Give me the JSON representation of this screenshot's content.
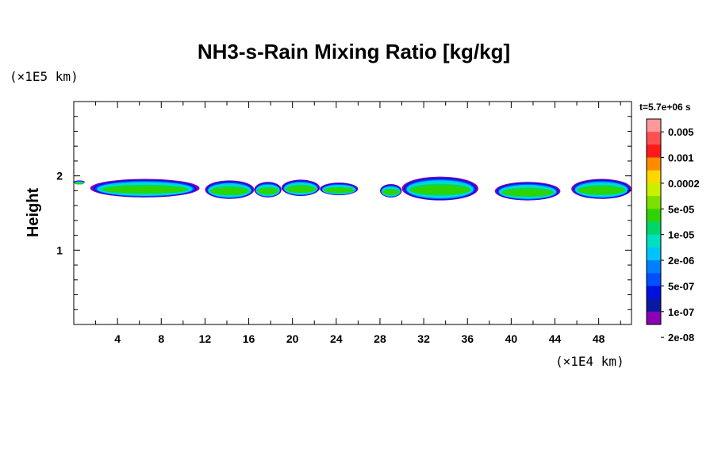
{
  "chart_data": {
    "type": "heatmap",
    "title": "NH3-s-Rain Mixing Ratio [kg/kg]",
    "ylabel": "Height",
    "xlabel": "",
    "x_multiplier": "(×1E4 km)",
    "y_multiplier": "(×1E5 km)",
    "time_label": "t=5.7e+06 s",
    "xlim": [
      0,
      51
    ],
    "ylim": [
      0,
      3
    ],
    "x_ticks": [
      "4",
      "8",
      "12",
      "16",
      "20",
      "24",
      "28",
      "32",
      "36",
      "40",
      "44",
      "48"
    ],
    "y_ticks": [
      "1",
      "2"
    ],
    "colorbar": {
      "labels": [
        "0.005",
        "0.001",
        "0.0002",
        "5e-05",
        "1e-05",
        "2e-06",
        "5e-07",
        "1e-07",
        "2e-08"
      ],
      "colors": [
        "#ff9999",
        "#ff5050",
        "#ff1a1a",
        "#ff8c00",
        "#ffd700",
        "#c8f000",
        "#7be000",
        "#2ed400",
        "#00d66b",
        "#00e0c0",
        "#00c4ff",
        "#0080ff",
        "#0050ff",
        "#0010e0",
        "#0a1aa0",
        "#8a00b4"
      ]
    },
    "layer": {
      "height_center": 1.8,
      "clouds": [
        {
          "x": [
            0,
            1
          ],
          "y": [
            1.9,
            1.95
          ]
        },
        {
          "x": [
            1.5,
            11.5
          ],
          "y": [
            1.72,
            1.97
          ]
        },
        {
          "x": [
            12,
            16.5
          ],
          "y": [
            1.7,
            1.95
          ]
        },
        {
          "x": [
            16.5,
            19
          ],
          "y": [
            1.72,
            1.93
          ]
        },
        {
          "x": [
            19,
            22.5
          ],
          "y": [
            1.74,
            1.96
          ]
        },
        {
          "x": [
            22.5,
            26
          ],
          "y": [
            1.75,
            1.92
          ]
        },
        {
          "x": [
            28,
            30
          ],
          "y": [
            1.72,
            1.9
          ]
        },
        {
          "x": [
            30,
            37
          ],
          "y": [
            1.68,
            2.0
          ]
        },
        {
          "x": [
            38.5,
            44.5
          ],
          "y": [
            1.68,
            1.93
          ]
        },
        {
          "x": [
            45.5,
            51
          ],
          "y": [
            1.7,
            1.97
          ]
        }
      ]
    }
  }
}
